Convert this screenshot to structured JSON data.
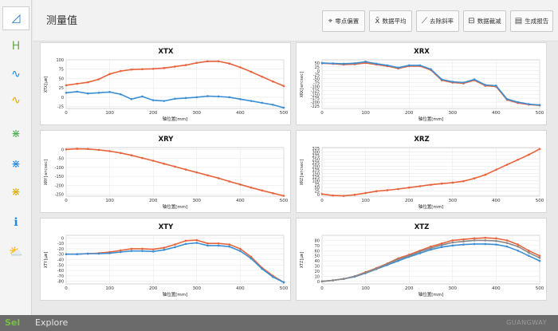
{
  "header": {
    "title": "测量值"
  },
  "toolbar": {
    "buttons": [
      {
        "id": "zero",
        "label": "零点偏置",
        "icon": "zero-offset-icon"
      },
      {
        "id": "avg",
        "label": "数据平均",
        "icon": "average-icon",
        "glyph": "x̄"
      },
      {
        "id": "slope",
        "label": "去除斜率",
        "icon": "remove-slope-icon"
      },
      {
        "id": "reduce",
        "label": "数据裁减",
        "icon": "data-trim-icon"
      },
      {
        "id": "report",
        "label": "生成报告",
        "icon": "report-icon"
      }
    ]
  },
  "sidebar": {
    "items": [
      {
        "id": "edit",
        "icon": "pencil-ruler-icon",
        "glyph": "◿",
        "color": "#1e6fb8"
      },
      {
        "id": "linear",
        "icon": "linear-axis-icon",
        "glyph": "H",
        "color": "#6aa84f"
      },
      {
        "id": "straight1",
        "icon": "straightness-icon",
        "glyph": "∿",
        "color": "#1e88e5"
      },
      {
        "id": "straight2",
        "icon": "flatness-icon",
        "glyph": "∿",
        "color": "#e0a800"
      },
      {
        "id": "axis1",
        "icon": "axis-green-icon",
        "glyph": "⋇",
        "color": "#4caf50"
      },
      {
        "id": "axis2",
        "icon": "axis-blue-icon",
        "glyph": "⋇",
        "color": "#1e88e5"
      },
      {
        "id": "axis3",
        "icon": "axis-orange-icon",
        "glyph": "⋇",
        "color": "#e0a800"
      },
      {
        "id": "info",
        "icon": "info-icon",
        "glyph": "ℹ",
        "color": "#1e88e5"
      },
      {
        "id": "weather",
        "icon": "weather-icon",
        "glyph": "⛅",
        "color": "#555555"
      }
    ]
  },
  "xaxis_label": "轴位置[mm]",
  "chart_data": [
    {
      "type": "line",
      "title": "XTX",
      "ylabel": "XTX[μm]",
      "xlabel": "轴位置[mm]",
      "xlim": [
        0,
        500
      ],
      "ylim": [
        -30,
        100
      ],
      "xticks": [
        "0",
        "100",
        "200",
        "300",
        "400",
        "500"
      ],
      "yticks": [
        "100",
        "75",
        "50",
        "25",
        "0",
        "-25"
      ],
      "series": [
        {
          "color": "#e8623a",
          "x": [
            0,
            25,
            50,
            75,
            100,
            125,
            150,
            175,
            200,
            225,
            250,
            275,
            300,
            325,
            350,
            375,
            400,
            425,
            450,
            475,
            500
          ],
          "values": [
            32,
            36,
            40,
            48,
            62,
            70,
            74,
            75,
            76,
            78,
            82,
            86,
            92,
            96,
            96,
            90,
            80,
            68,
            55,
            42,
            30
          ]
        },
        {
          "color": "#3a8fd4",
          "x": [
            0,
            25,
            50,
            75,
            100,
            125,
            150,
            175,
            200,
            225,
            250,
            275,
            300,
            325,
            350,
            375,
            400,
            425,
            450,
            475,
            500
          ],
          "values": [
            12,
            15,
            10,
            12,
            14,
            8,
            -5,
            2,
            -8,
            -10,
            -4,
            -2,
            0,
            3,
            2,
            0,
            -5,
            -10,
            -15,
            -20,
            -28
          ]
        }
      ]
    },
    {
      "type": "line",
      "title": "XRX",
      "ylabel": "XRX[arcsec]",
      "xlabel": "轴位置[mm]",
      "xlim": [
        0,
        500
      ],
      "ylim": [
        -240,
        70
      ],
      "xticks": [
        "0",
        "100",
        "200",
        "300",
        "400",
        "500"
      ],
      "yticks": [
        "50",
        "25",
        "0",
        "-25",
        "-50",
        "-75",
        "-100",
        "-125",
        "-150",
        "-175",
        "-200",
        "-225"
      ],
      "series": [
        {
          "color": "#e8623a",
          "x": [
            0,
            25,
            50,
            75,
            100,
            125,
            150,
            175,
            200,
            225,
            250,
            275,
            300,
            325,
            350,
            375,
            400,
            425,
            450,
            475,
            500
          ],
          "values": [
            48,
            45,
            40,
            42,
            50,
            40,
            30,
            15,
            30,
            30,
            5,
            -60,
            -75,
            -80,
            -60,
            -95,
            -100,
            -185,
            -205,
            -215,
            -220
          ]
        },
        {
          "color": "#3a8fd4",
          "x": [
            0,
            25,
            50,
            75,
            100,
            125,
            150,
            175,
            200,
            225,
            250,
            275,
            300,
            325,
            350,
            375,
            400,
            425,
            450,
            475,
            500
          ],
          "values": [
            50,
            47,
            45,
            48,
            58,
            45,
            35,
            20,
            35,
            35,
            10,
            -55,
            -70,
            -75,
            -55,
            -90,
            -95,
            -180,
            -200,
            -212,
            -218
          ]
        }
      ]
    },
    {
      "type": "line",
      "title": "XRY",
      "ylabel": "XRY[arcsec]",
      "xlabel": "轴位置[mm]",
      "xlim": [
        0,
        500
      ],
      "ylim": [
        -260,
        10
      ],
      "xticks": [
        "0",
        "100",
        "200",
        "300",
        "400",
        "500"
      ],
      "yticks": [
        "0",
        "-50",
        "-100",
        "-150",
        "-200",
        "-250"
      ],
      "series": [
        {
          "color": "#e8623a",
          "x": [
            0,
            25,
            50,
            75,
            100,
            125,
            150,
            175,
            200,
            225,
            250,
            275,
            300,
            325,
            350,
            375,
            400,
            425,
            450,
            475,
            500
          ],
          "values": [
            0,
            3,
            2,
            -3,
            -10,
            -20,
            -33,
            -48,
            -63,
            -80,
            -96,
            -112,
            -128,
            -144,
            -160,
            -178,
            -195,
            -212,
            -228,
            -243,
            -258
          ]
        }
      ]
    },
    {
      "type": "line",
      "title": "XRZ",
      "ylabel": "XRZ[arcsec]",
      "xlabel": "轴位置[mm]",
      "xlim": [
        0,
        500
      ],
      "ylim": [
        -10,
        330
      ],
      "xticks": [
        "0",
        "100",
        "200",
        "300",
        "400",
        "500"
      ],
      "yticks": [
        "0",
        "25",
        "50",
        "75",
        "100",
        "125",
        "150",
        "175",
        "200",
        "225",
        "250",
        "275",
        "300",
        "325"
      ],
      "series": [
        {
          "color": "#e8623a",
          "x": [
            0,
            25,
            50,
            75,
            100,
            125,
            150,
            175,
            200,
            225,
            250,
            275,
            300,
            325,
            350,
            375,
            400,
            425,
            450,
            475,
            500
          ],
          "values": [
            5,
            -5,
            -8,
            0,
            12,
            25,
            32,
            40,
            50,
            60,
            70,
            78,
            85,
            95,
            115,
            140,
            175,
            210,
            245,
            280,
            320
          ]
        }
      ]
    },
    {
      "type": "line",
      "title": "XTY",
      "ylabel": "XTY[μm]",
      "xlabel": "轴位置[mm]",
      "xlim": [
        0,
        500
      ],
      "ylim": [
        -85,
        5
      ],
      "xticks": [
        "0",
        "100",
        "200",
        "300",
        "400",
        "500"
      ],
      "yticks": [
        "0",
        "-10",
        "-20",
        "-30",
        "-40",
        "-50",
        "-60",
        "-70",
        "-80"
      ],
      "series": [
        {
          "color": "#e8623a",
          "x": [
            0,
            25,
            50,
            75,
            100,
            125,
            150,
            175,
            200,
            225,
            250,
            275,
            300,
            325,
            350,
            375,
            400,
            425,
            450,
            475,
            500
          ],
          "values": [
            -30,
            -30,
            -29,
            -28,
            -26,
            -23,
            -20,
            -20,
            -21,
            -18,
            -12,
            -5,
            -4,
            -10,
            -10,
            -12,
            -20,
            -35,
            -55,
            -70,
            -82
          ]
        },
        {
          "color": "#3a8fd4",
          "x": [
            0,
            25,
            50,
            75,
            100,
            125,
            150,
            175,
            200,
            225,
            250,
            275,
            300,
            325,
            350,
            375,
            400,
            425,
            450,
            475,
            500
          ],
          "values": [
            -30,
            -30,
            -29,
            -29,
            -28,
            -26,
            -24,
            -24,
            -25,
            -22,
            -17,
            -11,
            -9,
            -14,
            -14,
            -16,
            -24,
            -38,
            -57,
            -72,
            -82
          ]
        }
      ]
    },
    {
      "type": "line",
      "title": "XTZ",
      "ylabel": "XTZ[μm]",
      "xlabel": "轴位置[mm]",
      "xlim": [
        0,
        500
      ],
      "ylim": [
        -5,
        90
      ],
      "xticks": [
        "0",
        "100",
        "200",
        "300",
        "400",
        "500"
      ],
      "yticks": [
        "80",
        "70",
        "60",
        "50",
        "40",
        "30",
        "20",
        "10",
        "0"
      ],
      "series": [
        {
          "color": "#e8623a",
          "x": [
            0,
            25,
            50,
            75,
            100,
            125,
            150,
            175,
            200,
            225,
            250,
            275,
            300,
            325,
            350,
            375,
            400,
            425,
            450,
            475,
            500
          ],
          "values": [
            0,
            2,
            5,
            10,
            18,
            26,
            35,
            45,
            52,
            60,
            68,
            74,
            80,
            82,
            84,
            85,
            84,
            80,
            72,
            60,
            50
          ]
        },
        {
          "color": "#3a8fd4",
          "x": [
            0,
            25,
            50,
            75,
            100,
            125,
            150,
            175,
            200,
            225,
            250,
            275,
            300,
            325,
            350,
            375,
            400,
            425,
            450,
            475,
            500
          ],
          "values": [
            0,
            2,
            5,
            9,
            16,
            24,
            32,
            40,
            48,
            55,
            62,
            67,
            70,
            72,
            73,
            73,
            72,
            68,
            60,
            50,
            40
          ]
        },
        {
          "color": "#888888",
          "x": [
            0,
            25,
            50,
            75,
            100,
            125,
            150,
            175,
            200,
            225,
            250,
            275,
            300,
            325,
            350,
            375,
            400,
            425,
            450,
            475,
            500
          ],
          "values": [
            0,
            2,
            5,
            10,
            17,
            25,
            34,
            43,
            50,
            58,
            65,
            71,
            76,
            78,
            80,
            80,
            79,
            75,
            68,
            56,
            46
          ]
        }
      ]
    }
  ],
  "footer": {
    "brand_a": "Sel",
    "brand_b": "Explore",
    "company": "GUANGWAY"
  }
}
